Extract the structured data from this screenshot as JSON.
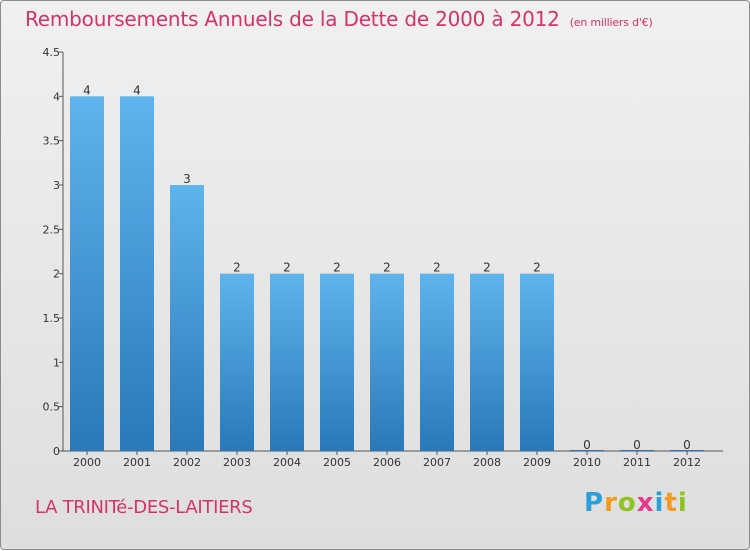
{
  "chart_data": {
    "type": "bar",
    "title": "Remboursements Annuels de la Dette de 2000 à 2012",
    "unit_note": "(en milliers d'€)",
    "categories": [
      "2000",
      "2001",
      "2002",
      "2003",
      "2004",
      "2005",
      "2006",
      "2007",
      "2008",
      "2009",
      "2010",
      "2011",
      "2012"
    ],
    "values": [
      4,
      4,
      3,
      2,
      2,
      2,
      2,
      2,
      2,
      2,
      0,
      0,
      0
    ],
    "value_labels": [
      "4",
      "4",
      "3",
      "2",
      "2",
      "2",
      "2",
      "2",
      "2",
      "2",
      "0",
      "0",
      "0"
    ],
    "yticks": [
      0,
      0.5,
      1,
      1.5,
      2,
      2.5,
      3,
      3.5,
      4,
      4.5
    ],
    "ytick_labels": [
      "0",
      "0.5",
      "1",
      "1.5",
      "2",
      "2.5",
      "3",
      "3.5",
      "4",
      "4.5"
    ],
    "ylim": [
      0,
      4.5
    ],
    "xlabel": "",
    "ylabel": "",
    "bar_color": "#4ea3e0"
  },
  "footer": {
    "commune": "LA TRINITé-DES-LAITIERS",
    "brand_letters": [
      "P",
      "r",
      "o",
      "x",
      "i",
      "t",
      "i"
    ]
  }
}
